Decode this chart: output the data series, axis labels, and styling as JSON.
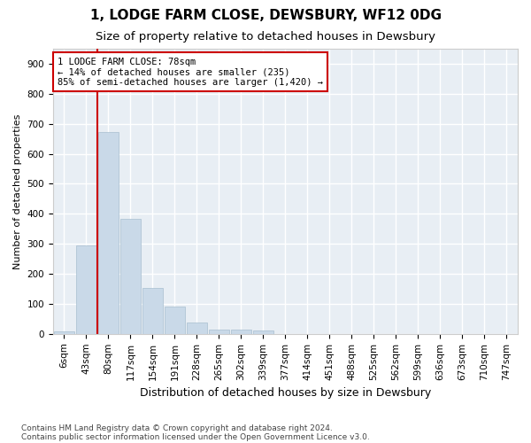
{
  "title": "1, LODGE FARM CLOSE, DEWSBURY, WF12 0DG",
  "subtitle": "Size of property relative to detached houses in Dewsbury",
  "xlabel": "Distribution of detached houses by size in Dewsbury",
  "ylabel": "Number of detached properties",
  "bar_labels": [
    "6sqm",
    "43sqm",
    "80sqm",
    "117sqm",
    "154sqm",
    "191sqm",
    "228sqm",
    "265sqm",
    "302sqm",
    "339sqm",
    "377sqm",
    "414sqm",
    "451sqm",
    "488sqm",
    "525sqm",
    "562sqm",
    "599sqm",
    "636sqm",
    "673sqm",
    "710sqm",
    "747sqm"
  ],
  "bar_values": [
    7,
    295,
    672,
    382,
    152,
    90,
    37,
    13,
    13,
    10,
    0,
    0,
    0,
    0,
    0,
    0,
    0,
    0,
    0,
    0,
    0
  ],
  "bar_color": "#c9d9e8",
  "bar_edge_color": "#a8bfd0",
  "background_color": "#e8eef4",
  "grid_color": "#ffffff",
  "annotation_line1": "1 LODGE FARM CLOSE: 78sqm",
  "annotation_line2": "← 14% of detached houses are smaller (235)",
  "annotation_line3": "85% of semi-detached houses are larger (1,420) →",
  "vline_x_index": 2,
  "vline_color": "#cc0000",
  "box_color": "#cc0000",
  "ylim": [
    0,
    950
  ],
  "yticks": [
    0,
    100,
    200,
    300,
    400,
    500,
    600,
    700,
    800,
    900
  ],
  "footnote1": "Contains HM Land Registry data © Crown copyright and database right 2024.",
  "footnote2": "Contains public sector information licensed under the Open Government Licence v3.0.",
  "title_fontsize": 11,
  "subtitle_fontsize": 9.5,
  "xlabel_fontsize": 9,
  "ylabel_fontsize": 8,
  "tick_fontsize": 7.5,
  "annotation_fontsize": 7.5,
  "footnote_fontsize": 6.5
}
